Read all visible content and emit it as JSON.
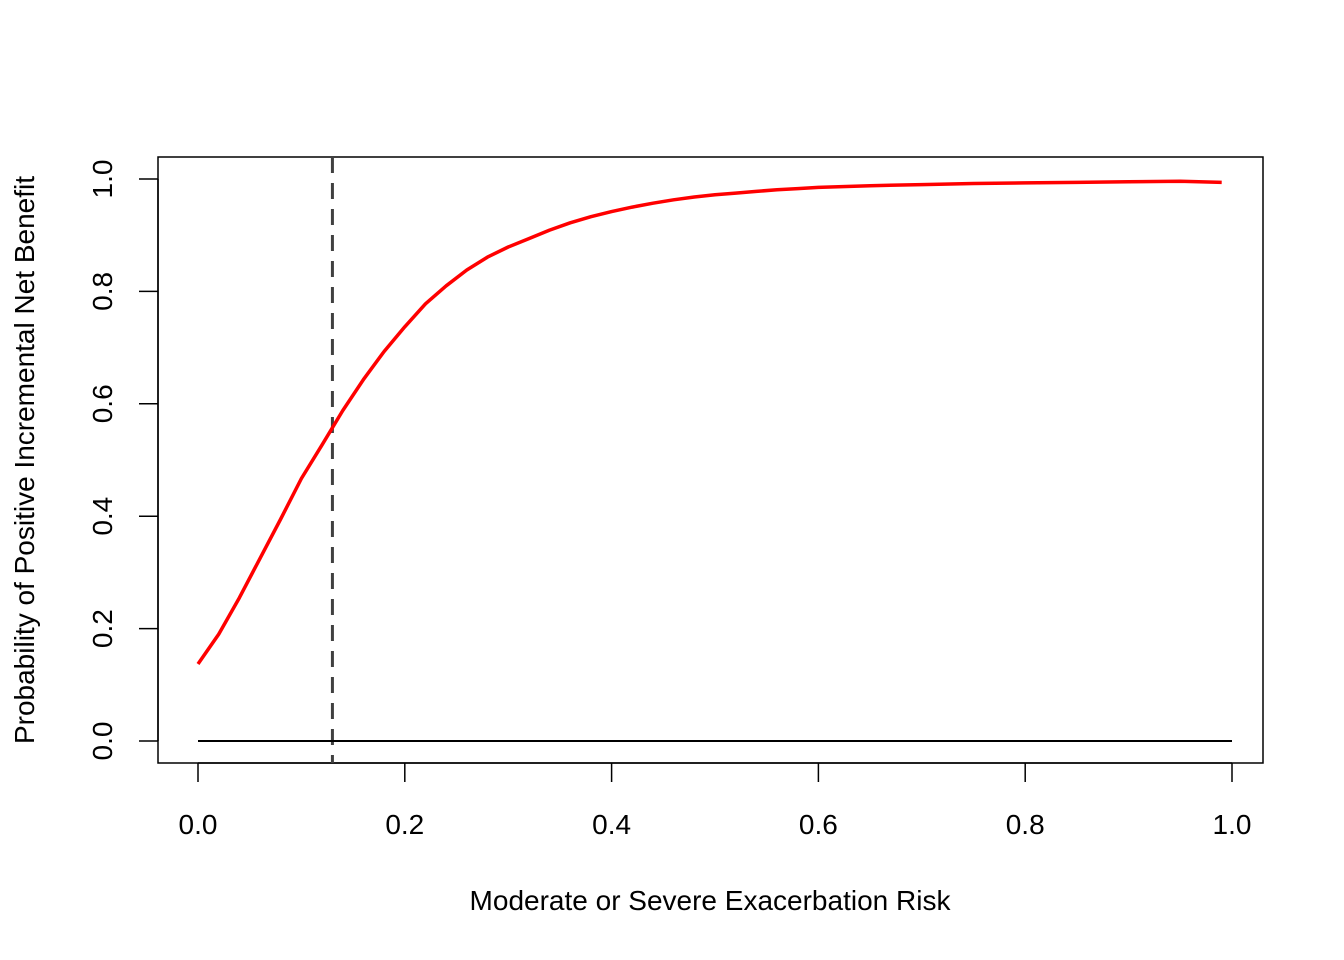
{
  "chart_data": {
    "type": "line",
    "title": "",
    "xlabel": "Moderate or Severe Exacerbation Risk",
    "ylabel": "Probability of Positive Incremental Net Benefit",
    "xlim": [
      0.0,
      1.0
    ],
    "ylim": [
      0.0,
      1.0
    ],
    "x_ticks": [
      "0.0",
      "0.2",
      "0.4",
      "0.6",
      "0.8",
      "1.0"
    ],
    "y_ticks": [
      "0.0",
      "0.2",
      "0.4",
      "0.6",
      "0.8",
      "1.0"
    ],
    "grid": false,
    "legend": "none",
    "series": [
      {
        "color": "#ff0000",
        "x": [
          0.0,
          0.02,
          0.04,
          0.06,
          0.08,
          0.1,
          0.12,
          0.14,
          0.16,
          0.18,
          0.2,
          0.22,
          0.24,
          0.26,
          0.28,
          0.3,
          0.32,
          0.34,
          0.36,
          0.38,
          0.4,
          0.42,
          0.44,
          0.46,
          0.48,
          0.5,
          0.52,
          0.54,
          0.56,
          0.58,
          0.6,
          0.65,
          0.7,
          0.75,
          0.8,
          0.85,
          0.9,
          0.95,
          0.99
        ],
        "y": [
          0.137,
          0.19,
          0.255,
          0.325,
          0.395,
          0.467,
          0.527,
          0.588,
          0.643,
          0.693,
          0.737,
          0.778,
          0.81,
          0.838,
          0.861,
          0.879,
          0.894,
          0.909,
          0.922,
          0.933,
          0.942,
          0.95,
          0.957,
          0.963,
          0.968,
          0.972,
          0.975,
          0.978,
          0.981,
          0.983,
          0.985,
          0.988,
          0.99,
          0.992,
          0.993,
          0.994,
          0.995,
          0.996,
          0.994
        ]
      }
    ],
    "reference_lines": [
      {
        "orientation": "vertical",
        "x": 0.13,
        "style": "dashed",
        "color": "#404040"
      },
      {
        "orientation": "horizontal",
        "y": 0.0,
        "x_range": [
          0.0,
          1.0
        ],
        "style": "solid",
        "color": "#000000"
      }
    ]
  }
}
